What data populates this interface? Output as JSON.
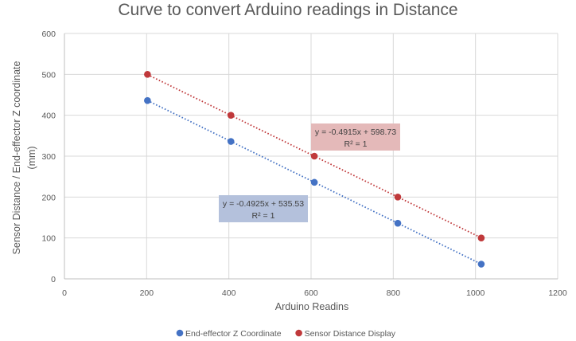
{
  "chart_data": {
    "type": "scatter",
    "title": "Curve to convert Arduino readings in Distance",
    "xlabel": "Arduino Readins",
    "ylabel_line1": "Sensor Distance / End-effector Z coordinate",
    "ylabel_line2": "(mm)",
    "xlim": [
      0,
      1200
    ],
    "ylim": [
      0,
      600
    ],
    "xticks": [
      0,
      200,
      400,
      600,
      800,
      1000,
      1200
    ],
    "yticks": [
      0,
      100,
      200,
      300,
      400,
      500,
      600
    ],
    "grid": true,
    "legend_position": "bottom",
    "series": [
      {
        "name": "End-effector Z Coordinate",
        "color": "#4472c4",
        "points": [
          [
            202,
            436
          ],
          [
            405,
            336
          ],
          [
            608,
            236
          ],
          [
            811,
            136
          ],
          [
            1014,
            36
          ]
        ],
        "trendline": {
          "slope": -0.4925,
          "intercept": 535.53,
          "equation": "y = -0.4925x + 535.53",
          "r2": "R² = 1",
          "box_color": "#b4c1dc"
        }
      },
      {
        "name": "Sensor Distance Display",
        "color": "#c0393b",
        "points": [
          [
            202,
            500
          ],
          [
            405,
            400
          ],
          [
            608,
            300
          ],
          [
            811,
            200
          ],
          [
            1014,
            100
          ]
        ],
        "trendline": {
          "slope": -0.4915,
          "intercept": 598.73,
          "equation": "y = -0.4915x + 598.73",
          "r2": "R² = 1",
          "box_color": "#e4b9b9"
        }
      }
    ]
  }
}
